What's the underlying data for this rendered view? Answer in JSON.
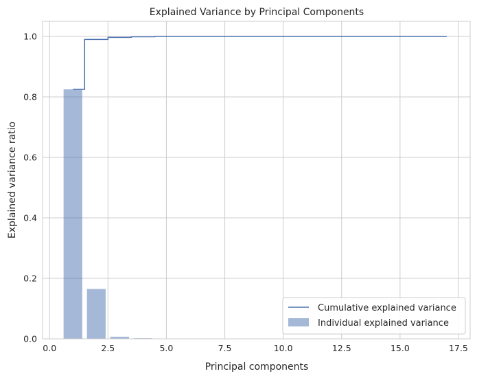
{
  "chart_data": {
    "type": "bar",
    "title": "Explained Variance by Principal Components",
    "xlabel": "Principal components",
    "ylabel": "Explained variance ratio",
    "xlim": [
      -0.3,
      18.0
    ],
    "ylim": [
      0,
      1.05
    ],
    "x_ticks": [
      0.0,
      2.5,
      5.0,
      7.5,
      10.0,
      12.5,
      15.0,
      17.5
    ],
    "x_tick_labels": [
      "0.0",
      "2.5",
      "5.0",
      "7.5",
      "10.0",
      "12.5",
      "15.0",
      "17.5"
    ],
    "y_ticks": [
      0.0,
      0.2,
      0.4,
      0.6,
      0.8,
      1.0
    ],
    "y_tick_labels": [
      "0.0",
      "0.2",
      "0.4",
      "0.6",
      "0.8",
      "1.0"
    ],
    "grid": true,
    "legend_position": "lower-right",
    "series": [
      {
        "name": "Individual explained variance",
        "kind": "bar",
        "color": "#4c72b0",
        "opacity": 0.5,
        "x": [
          1,
          2,
          3,
          4,
          5,
          6,
          7,
          8,
          9,
          10,
          11,
          12,
          13,
          14,
          15,
          16,
          17
        ],
        "values": [
          0.825,
          0.165,
          0.007,
          0.002,
          0.001,
          0,
          0,
          0,
          0,
          0,
          0,
          0,
          0,
          0,
          0,
          0,
          0
        ]
      },
      {
        "name": "Cumulative explained variance",
        "kind": "step",
        "color": "#4c72b0",
        "x": [
          1,
          2,
          3,
          4,
          5,
          6,
          7,
          8,
          9,
          10,
          11,
          12,
          13,
          14,
          15,
          16,
          17
        ],
        "values": [
          0.825,
          0.99,
          0.997,
          0.999,
          1.0,
          1.0,
          1.0,
          1.0,
          1.0,
          1.0,
          1.0,
          1.0,
          1.0,
          1.0,
          1.0,
          1.0,
          1.0
        ]
      }
    ]
  }
}
